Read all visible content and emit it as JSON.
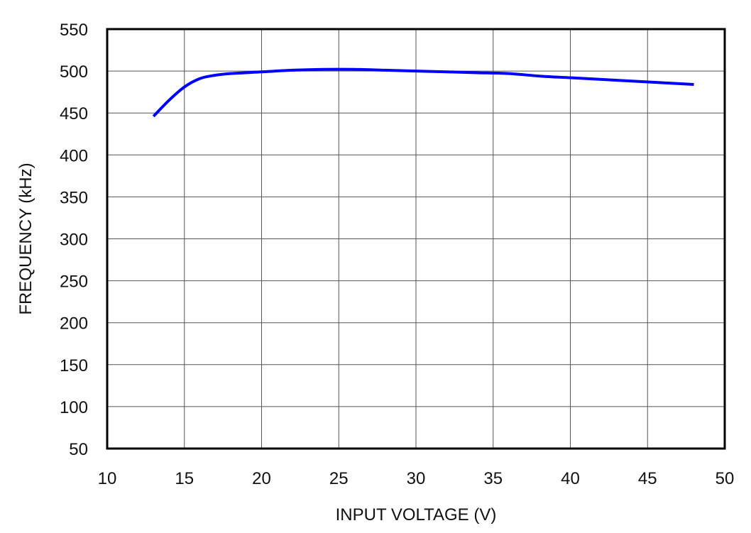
{
  "chart_data": {
    "type": "line",
    "title": "",
    "xlabel": "INPUT VOLTAGE (V)",
    "ylabel": "FREQUENCY (kHz)",
    "xlim": [
      10,
      50
    ],
    "ylim": [
      50,
      550
    ],
    "xticks": [
      10,
      15,
      20,
      25,
      30,
      35,
      40,
      45,
      50
    ],
    "yticks": [
      50,
      100,
      150,
      200,
      250,
      300,
      350,
      400,
      450,
      500,
      550
    ],
    "grid": true,
    "line_color": "#0000ff",
    "series": [
      {
        "x": [
          13,
          14,
          15,
          16,
          17,
          18,
          20,
          22,
          24,
          26,
          28,
          30,
          32,
          34,
          36,
          38,
          40,
          42,
          44,
          46,
          48
        ],
        "y": [
          446,
          465,
          481,
          491,
          495,
          497,
          499,
          501,
          502,
          502,
          501,
          500,
          499,
          498,
          497,
          494,
          492,
          490,
          488,
          486,
          484
        ]
      }
    ]
  }
}
